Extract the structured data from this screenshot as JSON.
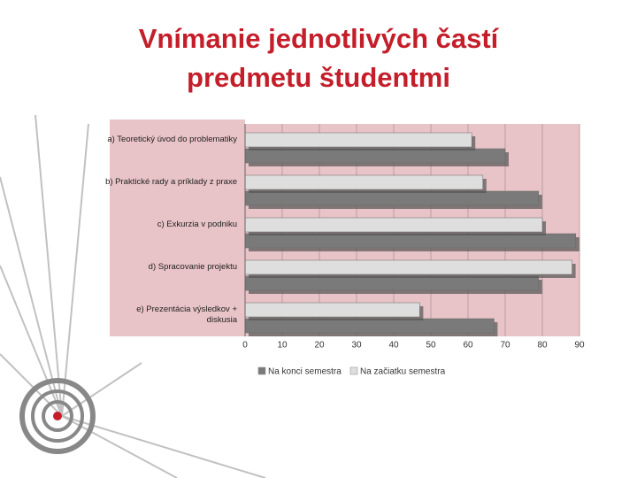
{
  "chart_data": {
    "type": "barh",
    "title": "Vnímanie jednotlivých častí predmetu študentmi",
    "categories": [
      "a) Teoretický úvod do problematiky",
      "b) Praktické rady a príklady z praxe",
      "c) Exkurzia v podniku",
      "d) Spracovanie projektu",
      "e) Prezentácia výsledkov + diskusia"
    ],
    "series": [
      {
        "name": "Na konci semestra",
        "color": "#7a7a7a",
        "values": [
          70,
          79,
          89,
          79,
          67
        ]
      },
      {
        "name": "Na začiatku semestra",
        "color": "#dedede",
        "values": [
          61,
          64,
          80,
          88,
          47
        ]
      }
    ],
    "xlim": [
      0,
      90
    ],
    "xticks": [
      0,
      10,
      20,
      30,
      40,
      50,
      60,
      70,
      80,
      90
    ],
    "grid": true,
    "legend": "bottom"
  }
}
